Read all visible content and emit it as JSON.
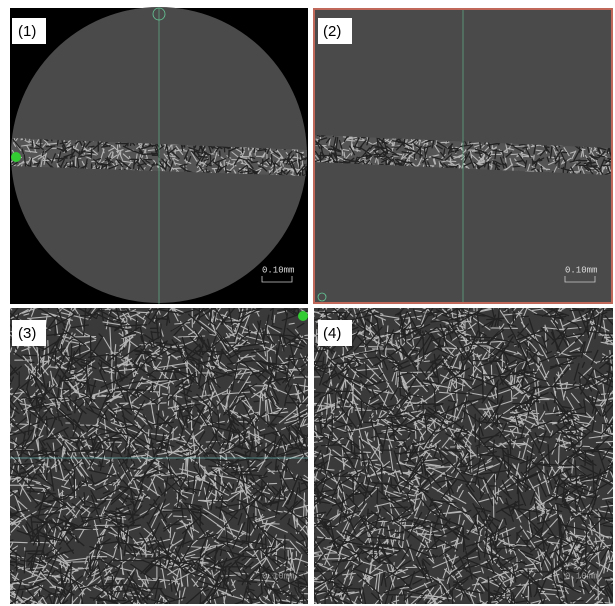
{
  "panels": [
    {
      "label": "(1)",
      "scale_label": "0.10mm"
    },
    {
      "label": "(2)",
      "scale_label": "0.10mm"
    },
    {
      "label": "(3)",
      "scale_label": "0.10mm"
    },
    {
      "label": "(4)",
      "scale_label": "0.10mm"
    }
  ]
}
